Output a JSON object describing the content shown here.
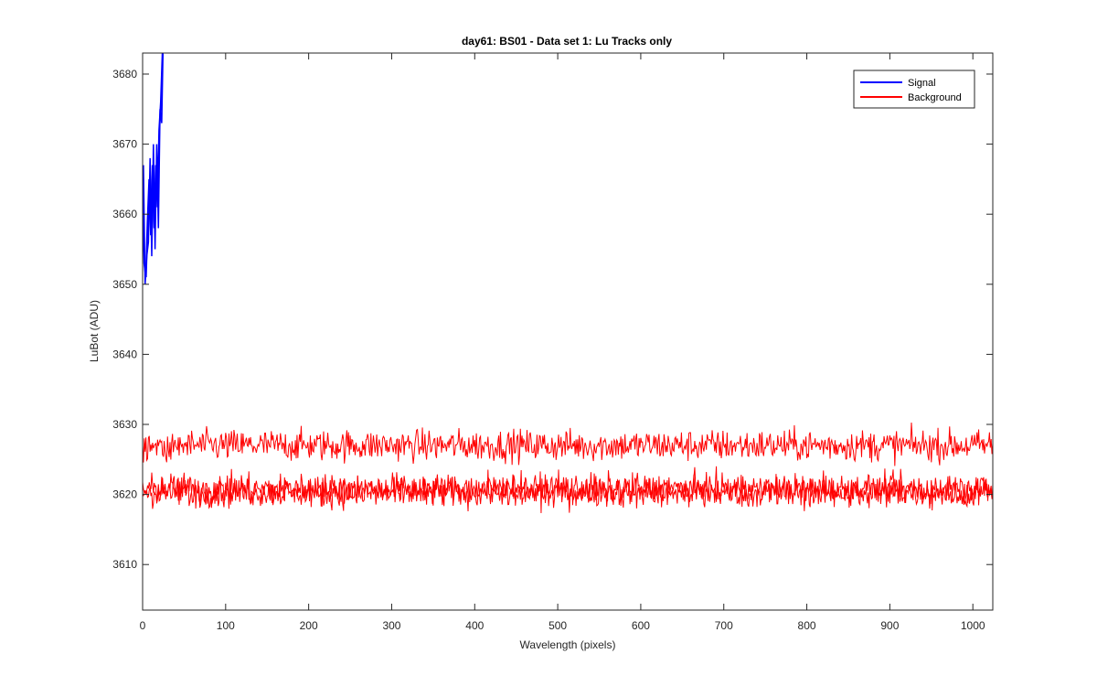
{
  "chart_data": {
    "type": "line",
    "title": "day61: BS01 - Data set 1: Lu Tracks only",
    "xlabel": "Wavelength (pixels)",
    "ylabel": "LuBot (ADU)",
    "xlim": [
      0,
      1024
    ],
    "ylim": [
      3603.5,
      3683
    ],
    "x_ticks": [
      0,
      100,
      200,
      300,
      400,
      500,
      600,
      700,
      800,
      900,
      1000
    ],
    "y_ticks": [
      3610,
      3620,
      3630,
      3640,
      3650,
      3660,
      3670,
      3680
    ],
    "grid": false,
    "legend_position": "top-right",
    "series": [
      {
        "name": "Signal",
        "color": "#0000ff",
        "x": [
          0,
          2,
          4,
          6,
          8,
          10,
          12,
          14,
          16,
          18,
          20,
          22,
          24
        ],
        "y": [
          3664,
          3653,
          3651,
          3659,
          3665,
          3657,
          3667,
          3658,
          3667,
          3661,
          3672,
          3676,
          3683
        ]
      },
      {
        "name": "Background",
        "color": "#ff0000",
        "note_levels": "two interleaved noisy traces",
        "upper_trace_mean": 3627,
        "lower_trace_mean": 3621,
        "noise_range": [
          3613.5,
          3633
        ],
        "x_range": [
          0,
          1024
        ]
      }
    ]
  }
}
